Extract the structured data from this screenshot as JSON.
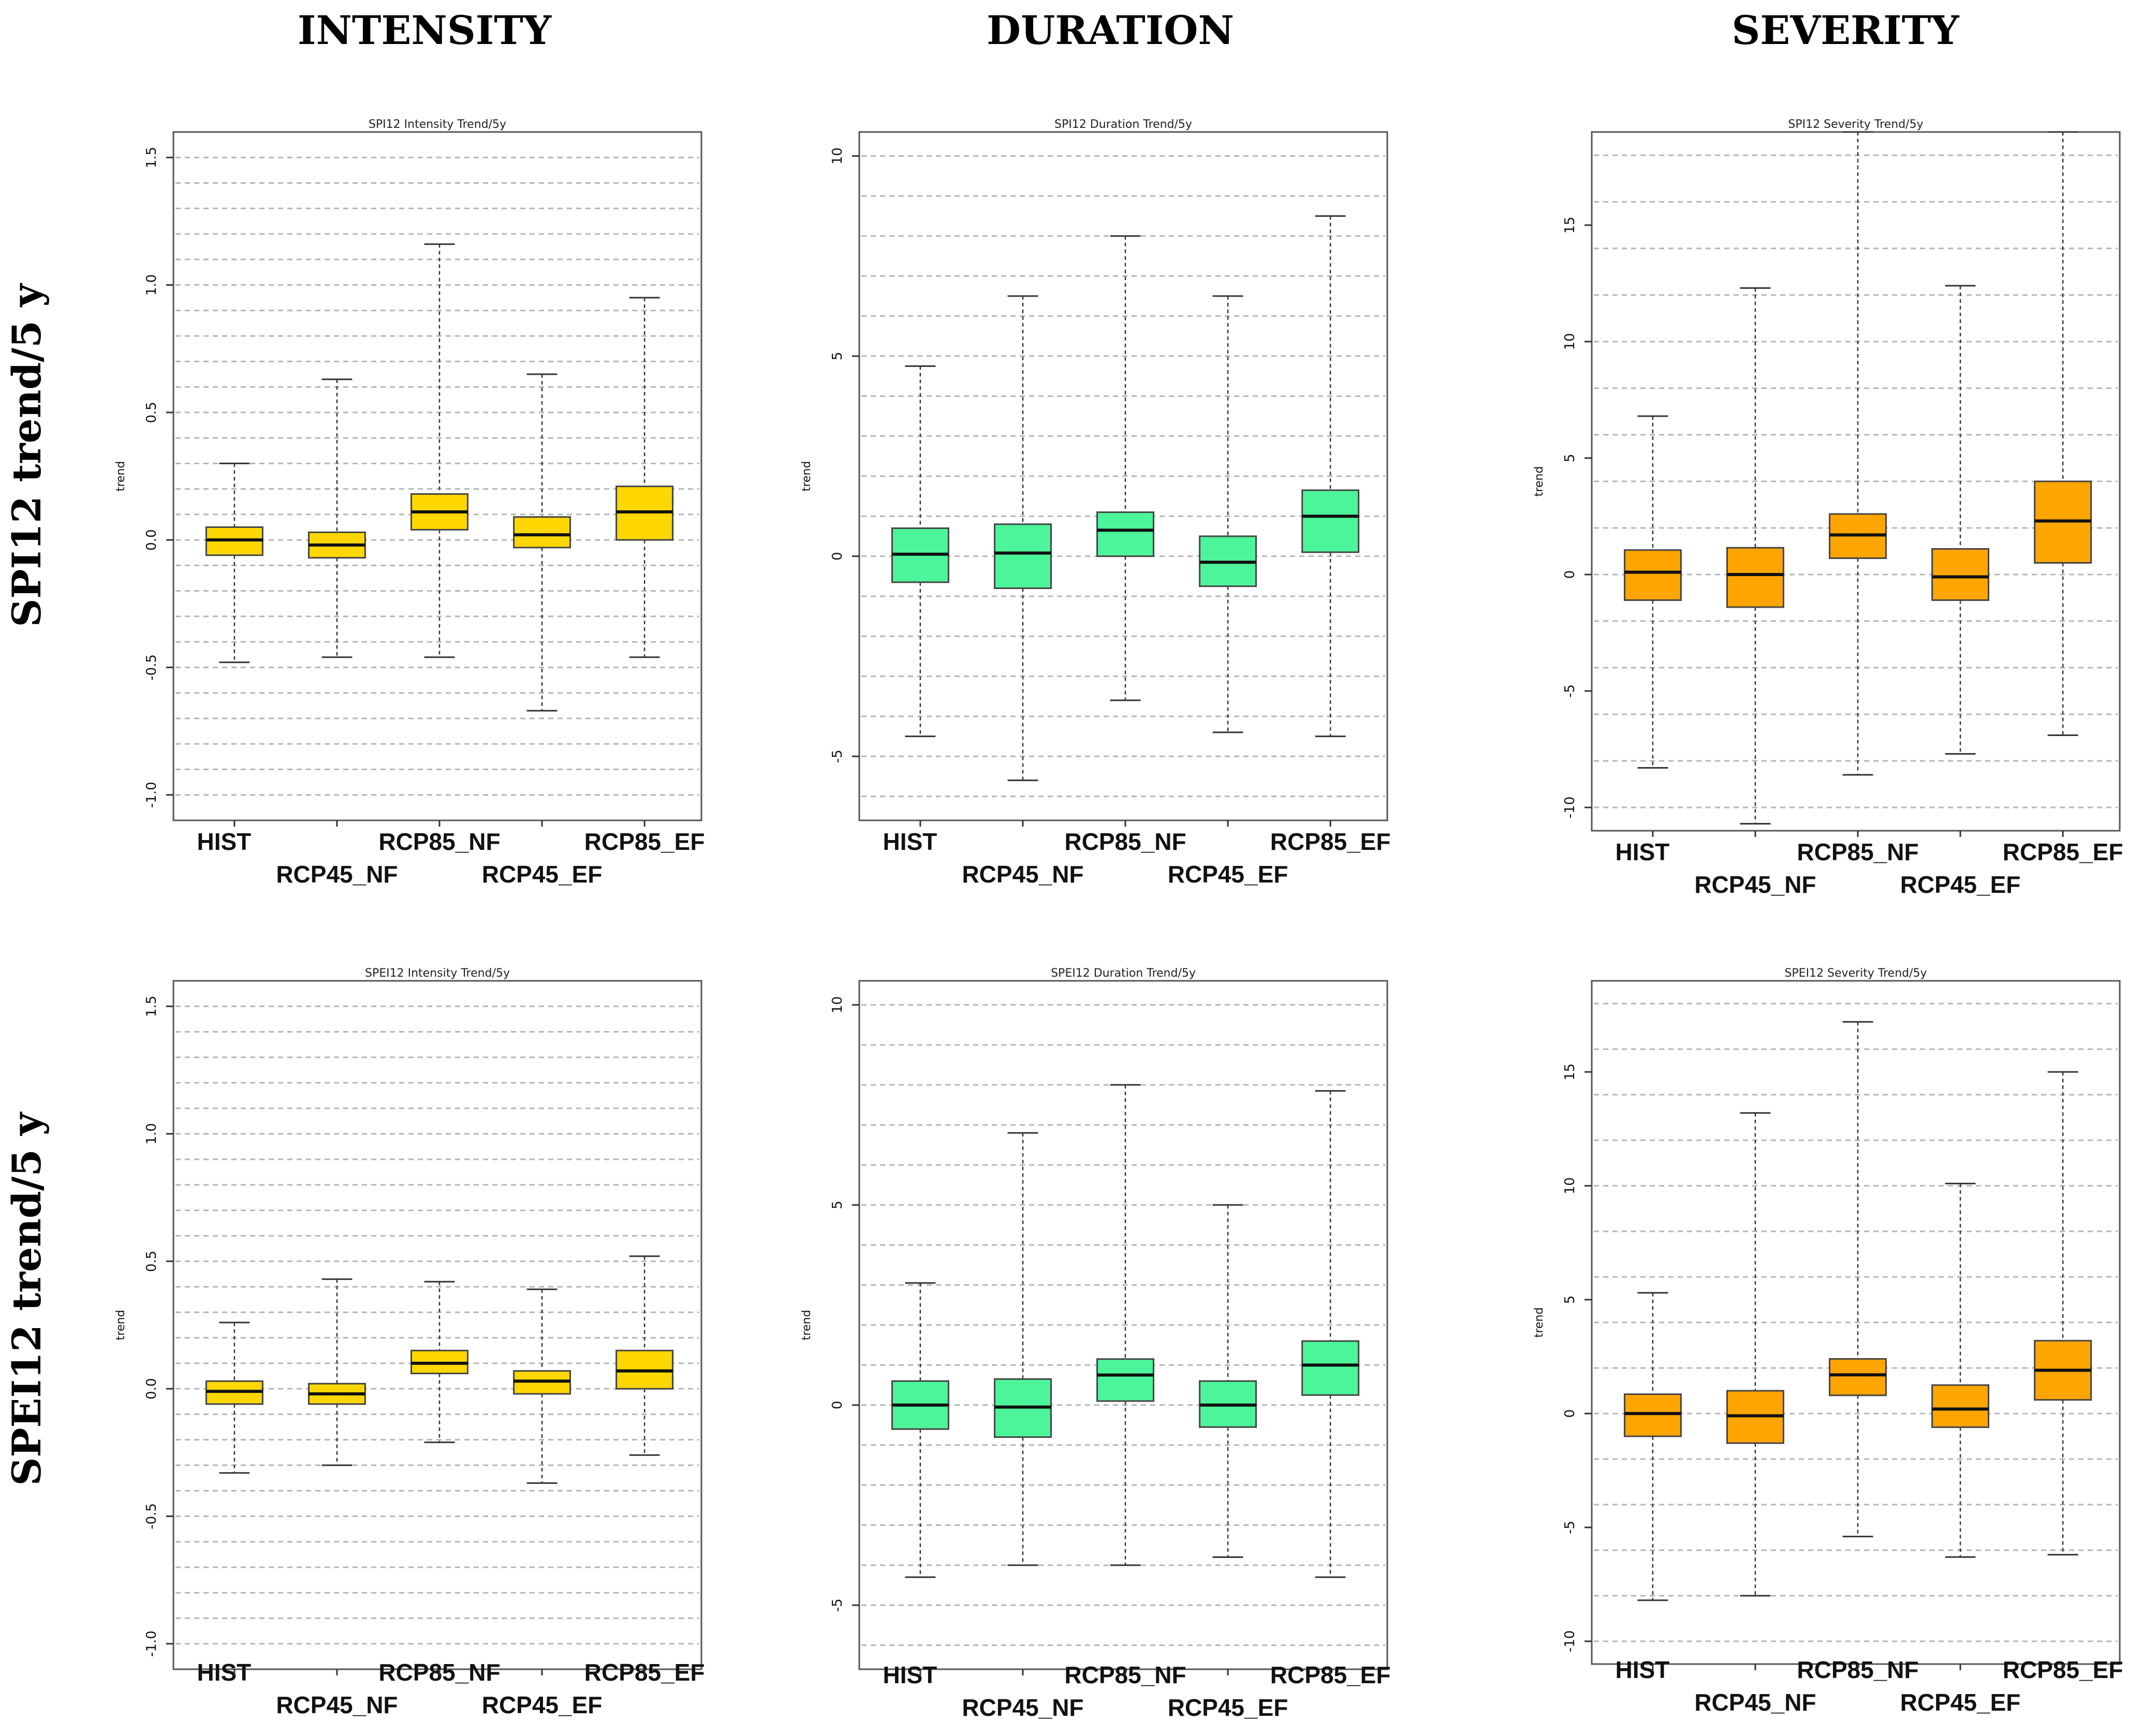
{
  "column_headers": [
    "INTENSITY",
    "DURATION",
    "SEVERITY"
  ],
  "row_headers": [
    "SPI12 trend/5 y",
    "SPEI12 trend/5 y"
  ],
  "colors": {
    "intensity": "#FFD700",
    "duration": "#4DF59A",
    "severity": "#FFA500"
  },
  "chart_data": [
    {
      "type": "boxplot",
      "title": "SPI12 Intensity Trend/5y",
      "ylabel": "trend",
      "ylim": [
        -1.1,
        1.6
      ],
      "yticks": [
        -1.0,
        -0.5,
        0.0,
        0.5,
        1.0,
        1.5
      ],
      "ytick_labels": [
        "-1.0",
        "-0.5",
        "0.0",
        "0.5",
        "1.0",
        "1.5"
      ],
      "grid_step": 0.1,
      "color_key": "intensity",
      "categories": [
        "HIST",
        "RCP45_NF",
        "RCP85_NF",
        "RCP45_EF",
        "RCP85_EF"
      ],
      "boxes": [
        {
          "whisker_low": -0.48,
          "q1": -0.06,
          "median": 0.0,
          "q3": 0.05,
          "whisker_high": 0.3
        },
        {
          "whisker_low": -0.46,
          "q1": -0.07,
          "median": -0.02,
          "q3": 0.03,
          "whisker_high": 0.63
        },
        {
          "whisker_low": -0.46,
          "q1": 0.04,
          "median": 0.11,
          "q3": 0.18,
          "whisker_high": 1.16
        },
        {
          "whisker_low": -0.67,
          "q1": -0.03,
          "median": 0.02,
          "q3": 0.09,
          "whisker_high": 0.65
        },
        {
          "whisker_low": -0.46,
          "q1": 0.0,
          "median": 0.11,
          "q3": 0.21,
          "whisker_high": 0.95
        }
      ]
    },
    {
      "type": "boxplot",
      "title": "SPI12 Duration Trend/5y",
      "ylabel": "trend",
      "ylim": [
        -6.6,
        10.6
      ],
      "yticks": [
        -5,
        0,
        5,
        10
      ],
      "ytick_labels": [
        "-5",
        "0",
        "5",
        "10"
      ],
      "grid_step": 1,
      "color_key": "duration",
      "categories": [
        "HIST",
        "RCP45_NF",
        "RCP85_NF",
        "RCP45_EF",
        "RCP85_EF"
      ],
      "boxes": [
        {
          "whisker_low": -4.5,
          "q1": -0.65,
          "median": 0.05,
          "q3": 0.7,
          "whisker_high": 4.75
        },
        {
          "whisker_low": -5.6,
          "q1": -0.8,
          "median": 0.08,
          "q3": 0.8,
          "whisker_high": 6.5
        },
        {
          "whisker_low": -3.6,
          "q1": 0.0,
          "median": 0.65,
          "q3": 1.1,
          "whisker_high": 8.0
        },
        {
          "whisker_low": -4.4,
          "q1": -0.75,
          "median": -0.15,
          "q3": 0.5,
          "whisker_high": 6.5
        },
        {
          "whisker_low": -4.5,
          "q1": 0.1,
          "median": 1.0,
          "q3": 1.65,
          "whisker_high": 8.5
        }
      ]
    },
    {
      "type": "boxplot",
      "title": "SPI12 Severity Trend/5y",
      "ylabel": "trend",
      "ylim": [
        -11,
        19
      ],
      "yticks": [
        -10,
        -5,
        0,
        5,
        10,
        15
      ],
      "ytick_labels": [
        "-10",
        "-5",
        "0",
        "5",
        "10",
        "15"
      ],
      "grid_step": 2,
      "color_key": "severity",
      "categories": [
        "HIST",
        "RCP45_NF",
        "RCP85_NF",
        "RCP45_EF",
        "RCP85_EF"
      ],
      "boxes": [
        {
          "whisker_low": -8.3,
          "q1": -1.1,
          "median": 0.1,
          "q3": 1.05,
          "whisker_high": 6.8
        },
        {
          "whisker_low": -10.7,
          "q1": -1.4,
          "median": 0.0,
          "q3": 1.15,
          "whisker_high": 12.3
        },
        {
          "whisker_low": -8.6,
          "q1": 0.7,
          "median": 1.7,
          "q3": 2.6,
          "whisker_high": 19.0
        },
        {
          "whisker_low": -7.7,
          "q1": -1.1,
          "median": -0.1,
          "q3": 1.1,
          "whisker_high": 12.4
        },
        {
          "whisker_low": -6.9,
          "q1": 0.5,
          "median": 2.3,
          "q3": 4.0,
          "whisker_high": 19.0
        }
      ]
    },
    {
      "type": "boxplot",
      "title": "SPEI12 Intensity Trend/5y",
      "ylabel": "trend",
      "ylim": [
        -1.1,
        1.6
      ],
      "yticks": [
        -1.0,
        -0.5,
        0.0,
        0.5,
        1.0,
        1.5
      ],
      "ytick_labels": [
        "-1.0",
        "-0.5",
        "0.0",
        "0.5",
        "1.0",
        "1.5"
      ],
      "grid_step": 0.1,
      "color_key": "intensity",
      "categories": [
        "HIST",
        "RCP45_NF",
        "RCP85_NF",
        "RCP45_EF",
        "RCP85_EF"
      ],
      "boxes": [
        {
          "whisker_low": -0.33,
          "q1": -0.06,
          "median": -0.01,
          "q3": 0.03,
          "whisker_high": 0.26
        },
        {
          "whisker_low": -0.3,
          "q1": -0.06,
          "median": -0.02,
          "q3": 0.02,
          "whisker_high": 0.43
        },
        {
          "whisker_low": -0.21,
          "q1": 0.06,
          "median": 0.1,
          "q3": 0.15,
          "whisker_high": 0.42
        },
        {
          "whisker_low": -0.37,
          "q1": -0.02,
          "median": 0.03,
          "q3": 0.07,
          "whisker_high": 0.39
        },
        {
          "whisker_low": -0.26,
          "q1": 0.0,
          "median": 0.07,
          "q3": 0.15,
          "whisker_high": 0.52
        }
      ]
    },
    {
      "type": "boxplot",
      "title": "SPEI12 Duration Trend/5y",
      "ylabel": "trend",
      "ylim": [
        -6.6,
        10.6
      ],
      "yticks": [
        -5,
        0,
        5,
        10
      ],
      "ytick_labels": [
        "-5",
        "0",
        "5",
        "10"
      ],
      "grid_step": 1,
      "color_key": "duration",
      "categories": [
        "HIST",
        "RCP45_NF",
        "RCP85_NF",
        "RCP45_EF",
        "RCP85_EF"
      ],
      "boxes": [
        {
          "whisker_low": -4.3,
          "q1": -0.6,
          "median": 0.0,
          "q3": 0.6,
          "whisker_high": 3.05
        },
        {
          "whisker_low": -4.0,
          "q1": -0.8,
          "median": -0.05,
          "q3": 0.65,
          "whisker_high": 6.8
        },
        {
          "whisker_low": -4.0,
          "q1": 0.1,
          "median": 0.75,
          "q3": 1.15,
          "whisker_high": 8.0
        },
        {
          "whisker_low": -3.8,
          "q1": -0.55,
          "median": 0.0,
          "q3": 0.6,
          "whisker_high": 5.0
        },
        {
          "whisker_low": -4.3,
          "q1": 0.25,
          "median": 1.0,
          "q3": 1.6,
          "whisker_high": 7.85
        }
      ]
    },
    {
      "type": "boxplot",
      "title": "SPEI12 Severity Trend/5y",
      "ylabel": "trend",
      "ylim": [
        -11,
        19
      ],
      "yticks": [
        -10,
        -5,
        0,
        5,
        10,
        15
      ],
      "ytick_labels": [
        "-10",
        "-5",
        "0",
        "5",
        "10",
        "15"
      ],
      "grid_step": 2,
      "color_key": "severity",
      "categories": [
        "HIST",
        "RCP45_NF",
        "RCP85_NF",
        "RCP45_EF",
        "RCP85_EF"
      ],
      "boxes": [
        {
          "whisker_low": -8.2,
          "q1": -1.0,
          "median": 0.0,
          "q3": 0.85,
          "whisker_high": 5.3
        },
        {
          "whisker_low": -8.0,
          "q1": -1.3,
          "median": -0.1,
          "q3": 1.0,
          "whisker_high": 13.2
        },
        {
          "whisker_low": -5.4,
          "q1": 0.8,
          "median": 1.7,
          "q3": 2.4,
          "whisker_high": 17.2
        },
        {
          "whisker_low": -6.3,
          "q1": -0.6,
          "median": 0.2,
          "q3": 1.25,
          "whisker_high": 10.1
        },
        {
          "whisker_low": -6.2,
          "q1": 0.6,
          "median": 1.9,
          "q3": 3.2,
          "whisker_high": 15.0
        }
      ]
    }
  ]
}
